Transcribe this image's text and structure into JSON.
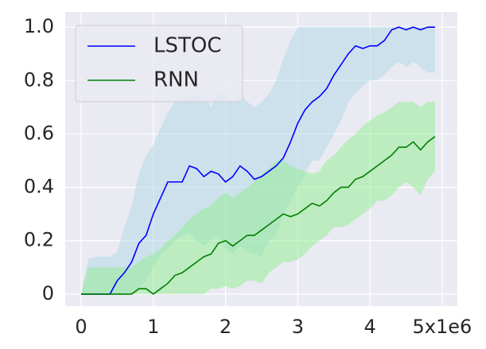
{
  "chart_data": {
    "type": "line",
    "x": [
      0,
      0.1,
      0.2,
      0.3,
      0.4,
      0.5,
      0.6,
      0.7,
      0.8,
      0.9,
      1.0,
      1.1,
      1.2,
      1.3,
      1.4,
      1.5,
      1.6,
      1.7,
      1.8,
      1.9,
      2.0,
      2.1,
      2.2,
      2.3,
      2.4,
      2.5,
      2.6,
      2.7,
      2.8,
      2.9,
      3.0,
      3.1,
      3.2,
      3.3,
      3.4,
      3.5,
      3.6,
      3.7,
      3.8,
      3.9,
      4.0,
      4.1,
      4.2,
      4.3,
      4.4,
      4.5,
      4.6,
      4.7,
      4.8,
      4.9
    ],
    "series": [
      {
        "name": "LSTOC",
        "color": "#0000ff",
        "band_color": "#add8e6",
        "values": [
          0,
          0,
          0,
          0,
          0,
          0.05,
          0.08,
          0.12,
          0.19,
          0.22,
          0.3,
          0.36,
          0.42,
          0.42,
          0.42,
          0.48,
          0.47,
          0.44,
          0.46,
          0.45,
          0.42,
          0.44,
          0.48,
          0.46,
          0.43,
          0.44,
          0.46,
          0.48,
          0.51,
          0.57,
          0.64,
          0.69,
          0.72,
          0.74,
          0.77,
          0.82,
          0.86,
          0.9,
          0.93,
          0.92,
          0.93,
          0.93,
          0.95,
          0.99,
          1.0,
          0.99,
          1.0,
          0.99,
          1.0,
          1.0
        ],
        "upper": [
          0,
          0.13,
          0.14,
          0.14,
          0.14,
          0.16,
          0.25,
          0.33,
          0.45,
          0.52,
          0.56,
          0.62,
          0.68,
          0.72,
          0.72,
          0.75,
          0.74,
          0.75,
          0.7,
          0.76,
          0.74,
          0.72,
          0.75,
          0.72,
          0.7,
          0.72,
          0.75,
          0.8,
          0.88,
          0.95,
          1,
          1,
          1,
          1,
          1,
          1,
          1,
          1,
          1,
          1,
          1,
          1,
          1,
          1,
          1,
          1,
          1,
          1,
          1,
          1
        ],
        "lower": [
          0,
          0,
          0,
          0,
          0,
          0,
          0,
          0,
          0.02,
          0.05,
          0.1,
          0.15,
          0.17,
          0.2,
          0.22,
          0.23,
          0.2,
          0.18,
          0.2,
          0.22,
          0.17,
          0.15,
          0.18,
          0.16,
          0.15,
          0.14,
          0.2,
          0.22,
          0.3,
          0.35,
          0.4,
          0.45,
          0.5,
          0.5,
          0.55,
          0.6,
          0.65,
          0.72,
          0.75,
          0.78,
          0.8,
          0.8,
          0.82,
          0.85,
          0.87,
          0.85,
          0.87,
          0.85,
          0.83,
          0.83
        ]
      },
      {
        "name": "RNN",
        "color": "#008000",
        "band_color": "#90ee90",
        "values": [
          0,
          0,
          0,
          0,
          0,
          0,
          0,
          0,
          0.02,
          0.02,
          0,
          0.02,
          0.04,
          0.07,
          0.08,
          0.1,
          0.12,
          0.14,
          0.15,
          0.19,
          0.2,
          0.18,
          0.2,
          0.22,
          0.22,
          0.24,
          0.26,
          0.28,
          0.3,
          0.29,
          0.3,
          0.32,
          0.34,
          0.33,
          0.35,
          0.38,
          0.4,
          0.4,
          0.43,
          0.44,
          0.46,
          0.48,
          0.5,
          0.52,
          0.55,
          0.55,
          0.57,
          0.54,
          0.57,
          0.59
        ],
        "upper": [
          0,
          0.1,
          0.1,
          0.1,
          0.1,
          0.1,
          0.1,
          0.1,
          0.12,
          0.14,
          0.15,
          0.17,
          0.2,
          0.22,
          0.25,
          0.28,
          0.3,
          0.32,
          0.33,
          0.36,
          0.38,
          0.36,
          0.38,
          0.4,
          0.42,
          0.45,
          0.47,
          0.5,
          0.5,
          0.48,
          0.47,
          0.46,
          0.45,
          0.46,
          0.5,
          0.52,
          0.55,
          0.58,
          0.6,
          0.63,
          0.65,
          0.67,
          0.68,
          0.7,
          0.72,
          0.72,
          0.72,
          0.7,
          0.72,
          0.72
        ],
        "lower": [
          0,
          0,
          0,
          0,
          0,
          0,
          0,
          0,
          0,
          0,
          0,
          0,
          0,
          0,
          0,
          0,
          0,
          0,
          0.02,
          0.02,
          0.03,
          0.02,
          0.03,
          0.05,
          0.05,
          0.04,
          0.08,
          0.1,
          0.12,
          0.12,
          0.13,
          0.15,
          0.18,
          0.2,
          0.22,
          0.25,
          0.25,
          0.26,
          0.28,
          0.3,
          0.32,
          0.35,
          0.35,
          0.37,
          0.4,
          0.42,
          0.4,
          0.37,
          0.43,
          0.46
        ]
      }
    ],
    "xlim": [
      -0.22,
      5.21
    ],
    "xticks": [
      0,
      1,
      2,
      3,
      4,
      {
        "value": 5,
        "label": "5x1e6"
      }
    ],
    "ylim": [
      -0.045,
      1.057
    ],
    "yticks": [
      0,
      0.2,
      0.4,
      0.6,
      0.8,
      {
        "value": 1.0,
        "label": "1.0"
      }
    ],
    "grid": true,
    "legend": "upper left"
  }
}
